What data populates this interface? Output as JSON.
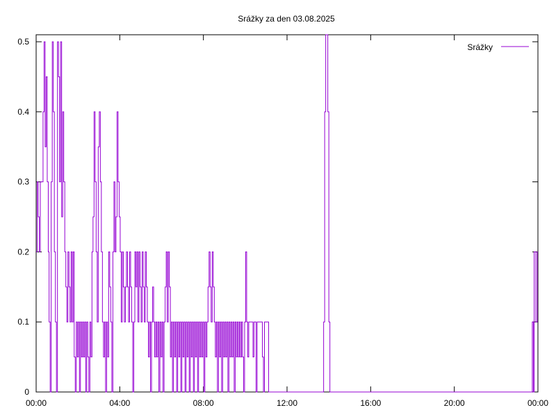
{
  "chart_data": {
    "type": "line",
    "title": "Srážky za den 03.08.2025",
    "xlabel": "",
    "ylabel": "",
    "x_unit": "hours",
    "xlim": [
      0,
      24
    ],
    "ylim": [
      0,
      0.51
    ],
    "x_tick_labels": [
      "00:00",
      "04:00",
      "08:00",
      "12:00",
      "16:00",
      "20:00",
      "00:00"
    ],
    "x_ticks": [
      0,
      4,
      8,
      12,
      16,
      20,
      24
    ],
    "y_ticks": [
      0,
      0.1,
      0.2,
      0.3,
      0.4,
      0.5
    ],
    "y_tick_labels": [
      "0",
      "0.1",
      "0.2",
      "0.3",
      "0.4",
      "0.5"
    ],
    "grid": false,
    "legend_position": "top-right",
    "series": [
      {
        "name": "Srážky",
        "color": "#9400d3",
        "step": true,
        "points": [
          [
            0.0,
            0.2
          ],
          [
            0.05,
            0.3
          ],
          [
            0.1,
            0.25
          ],
          [
            0.15,
            0.2
          ],
          [
            0.2,
            0.3
          ],
          [
            0.28,
            0.3
          ],
          [
            0.33,
            0.4
          ],
          [
            0.38,
            0.5
          ],
          [
            0.43,
            0.35
          ],
          [
            0.48,
            0.45
          ],
          [
            0.53,
            0.3
          ],
          [
            0.58,
            0.2
          ],
          [
            0.62,
            0.1
          ],
          [
            0.67,
            0.0
          ],
          [
            0.72,
            0.3
          ],
          [
            0.77,
            0.5
          ],
          [
            0.82,
            0.4
          ],
          [
            0.87,
            0.2
          ],
          [
            0.92,
            0.1
          ],
          [
            0.97,
            0.0
          ],
          [
            1.02,
            0.5
          ],
          [
            1.07,
            0.45
          ],
          [
            1.12,
            0.3
          ],
          [
            1.17,
            0.5
          ],
          [
            1.22,
            0.25
          ],
          [
            1.27,
            0.4
          ],
          [
            1.32,
            0.3
          ],
          [
            1.37,
            0.2
          ],
          [
            1.42,
            0.15
          ],
          [
            1.47,
            0.1
          ],
          [
            1.52,
            0.2
          ],
          [
            1.57,
            0.15
          ],
          [
            1.62,
            0.1
          ],
          [
            1.67,
            0.2
          ],
          [
            1.72,
            0.1
          ],
          [
            1.77,
            0.2
          ],
          [
            1.82,
            0.05
          ],
          [
            1.87,
            0.0
          ],
          [
            1.92,
            0.1
          ],
          [
            1.97,
            0.05
          ],
          [
            2.02,
            0.1
          ],
          [
            2.07,
            0.0
          ],
          [
            2.12,
            0.1
          ],
          [
            2.17,
            0.05
          ],
          [
            2.22,
            0.1
          ],
          [
            2.27,
            0.05
          ],
          [
            2.32,
            0.1
          ],
          [
            2.37,
            0.0
          ],
          [
            2.42,
            0.1
          ],
          [
            2.47,
            0.05
          ],
          [
            2.52,
            0.0
          ],
          [
            2.57,
            0.1
          ],
          [
            2.62,
            0.05
          ],
          [
            2.67,
            0.2
          ],
          [
            2.72,
            0.25
          ],
          [
            2.77,
            0.4
          ],
          [
            2.82,
            0.3
          ],
          [
            2.87,
            0.2
          ],
          [
            2.92,
            0.1
          ],
          [
            2.97,
            0.35
          ],
          [
            3.02,
            0.4
          ],
          [
            3.07,
            0.3
          ],
          [
            3.12,
            0.2
          ],
          [
            3.17,
            0.1
          ],
          [
            3.22,
            0.05
          ],
          [
            3.27,
            0.1
          ],
          [
            3.32,
            0.0
          ],
          [
            3.37,
            0.1
          ],
          [
            3.42,
            0.05
          ],
          [
            3.47,
            0.2
          ],
          [
            3.52,
            0.15
          ],
          [
            3.57,
            0.1
          ],
          [
            3.62,
            0.0
          ],
          [
            3.67,
            0.2
          ],
          [
            3.72,
            0.3
          ],
          [
            3.77,
            0.2
          ],
          [
            3.82,
            0.25
          ],
          [
            3.87,
            0.4
          ],
          [
            3.92,
            0.3
          ],
          [
            3.97,
            0.25
          ],
          [
            4.02,
            0.2
          ],
          [
            4.07,
            0.1
          ],
          [
            4.12,
            0.2
          ],
          [
            4.17,
            0.15
          ],
          [
            4.22,
            0.1
          ],
          [
            4.27,
            0.15
          ],
          [
            4.32,
            0.2
          ],
          [
            4.37,
            0.15
          ],
          [
            4.42,
            0.1
          ],
          [
            4.47,
            0.2
          ],
          [
            4.52,
            0.15
          ],
          [
            4.57,
            0.1
          ],
          [
            4.62,
            0.0
          ],
          [
            4.67,
            0.1
          ],
          [
            4.72,
            0.2
          ],
          [
            4.77,
            0.15
          ],
          [
            4.82,
            0.2
          ],
          [
            4.87,
            0.1
          ],
          [
            4.92,
            0.2
          ],
          [
            4.97,
            0.15
          ],
          [
            5.02,
            0.1
          ],
          [
            5.07,
            0.2
          ],
          [
            5.12,
            0.15
          ],
          [
            5.17,
            0.1
          ],
          [
            5.22,
            0.2
          ],
          [
            5.27,
            0.15
          ],
          [
            5.32,
            0.1
          ],
          [
            5.37,
            0.05
          ],
          [
            5.42,
            0.1
          ],
          [
            5.47,
            0.0
          ],
          [
            5.52,
            0.1
          ],
          [
            5.57,
            0.15
          ],
          [
            5.62,
            0.1
          ],
          [
            5.67,
            0.05
          ],
          [
            5.72,
            0.1
          ],
          [
            5.77,
            0.05
          ],
          [
            5.82,
            0.1
          ],
          [
            5.87,
            0.0
          ],
          [
            5.92,
            0.1
          ],
          [
            5.97,
            0.05
          ],
          [
            6.02,
            0.1
          ],
          [
            6.07,
            0.0
          ],
          [
            6.12,
            0.1
          ],
          [
            6.17,
            0.15
          ],
          [
            6.22,
            0.2
          ],
          [
            6.27,
            0.1
          ],
          [
            6.32,
            0.2
          ],
          [
            6.37,
            0.15
          ],
          [
            6.42,
            0.05
          ],
          [
            6.47,
            0.1
          ],
          [
            6.52,
            0.0
          ],
          [
            6.57,
            0.1
          ],
          [
            6.62,
            0.05
          ],
          [
            6.67,
            0.1
          ],
          [
            6.72,
            0.0
          ],
          [
            6.77,
            0.1
          ],
          [
            6.82,
            0.05
          ],
          [
            6.87,
            0.1
          ],
          [
            6.92,
            0.0
          ],
          [
            6.97,
            0.1
          ],
          [
            7.02,
            0.05
          ],
          [
            7.07,
            0.1
          ],
          [
            7.12,
            0.0
          ],
          [
            7.17,
            0.1
          ],
          [
            7.22,
            0.05
          ],
          [
            7.27,
            0.1
          ],
          [
            7.32,
            0.0
          ],
          [
            7.37,
            0.1
          ],
          [
            7.42,
            0.05
          ],
          [
            7.47,
            0.1
          ],
          [
            7.52,
            0.0
          ],
          [
            7.57,
            0.1
          ],
          [
            7.62,
            0.05
          ],
          [
            7.67,
            0.1
          ],
          [
            7.72,
            0.0
          ],
          [
            7.77,
            0.1
          ],
          [
            7.82,
            0.05
          ],
          [
            7.87,
            0.1
          ],
          [
            7.92,
            0.05
          ],
          [
            7.97,
            0.1
          ],
          [
            8.02,
            0.0
          ],
          [
            8.07,
            0.1
          ],
          [
            8.12,
            0.05
          ],
          [
            8.17,
            0.1
          ],
          [
            8.22,
            0.15
          ],
          [
            8.27,
            0.2
          ],
          [
            8.32,
            0.15
          ],
          [
            8.37,
            0.1
          ],
          [
            8.42,
            0.2
          ],
          [
            8.47,
            0.15
          ],
          [
            8.52,
            0.1
          ],
          [
            8.57,
            0.05
          ],
          [
            8.62,
            0.1
          ],
          [
            8.67,
            0.0
          ],
          [
            8.72,
            0.1
          ],
          [
            8.77,
            0.05
          ],
          [
            8.82,
            0.1
          ],
          [
            8.87,
            0.0
          ],
          [
            8.92,
            0.1
          ],
          [
            8.97,
            0.05
          ],
          [
            9.02,
            0.1
          ],
          [
            9.07,
            0.05
          ],
          [
            9.12,
            0.1
          ],
          [
            9.17,
            0.0
          ],
          [
            9.22,
            0.1
          ],
          [
            9.27,
            0.05
          ],
          [
            9.32,
            0.1
          ],
          [
            9.37,
            0.05
          ],
          [
            9.42,
            0.1
          ],
          [
            9.47,
            0.0
          ],
          [
            9.52,
            0.1
          ],
          [
            9.57,
            0.05
          ],
          [
            9.62,
            0.1
          ],
          [
            9.67,
            0.05
          ],
          [
            9.72,
            0.1
          ],
          [
            9.77,
            0.05
          ],
          [
            9.82,
            0.1
          ],
          [
            9.87,
            0.05
          ],
          [
            9.92,
            0.0
          ],
          [
            9.97,
            0.1
          ],
          [
            10.02,
            0.2
          ],
          [
            10.07,
            0.1
          ],
          [
            10.12,
            0.05
          ],
          [
            10.17,
            0.1
          ],
          [
            10.22,
            0.1
          ],
          [
            10.27,
            0.1
          ],
          [
            10.32,
            0.1
          ],
          [
            10.37,
            0.05
          ],
          [
            10.42,
            0.1
          ],
          [
            10.47,
            0.1
          ],
          [
            10.52,
            0.0
          ],
          [
            10.57,
            0.1
          ],
          [
            10.62,
            0.1
          ],
          [
            10.67,
            0.1
          ],
          [
            10.72,
            0.1
          ],
          [
            10.77,
            0.1
          ],
          [
            10.82,
            0.05
          ],
          [
            10.87,
            0.0
          ],
          [
            10.92,
            0.1
          ],
          [
            10.97,
            0.1
          ],
          [
            11.02,
            0.1
          ],
          [
            11.07,
            0.1
          ],
          [
            11.12,
            0.0
          ],
          [
            11.2,
            0.0
          ],
          [
            13.72,
            0.0
          ],
          [
            13.75,
            0.1
          ],
          [
            13.8,
            0.4
          ],
          [
            13.85,
            0.51
          ],
          [
            13.9,
            0.51
          ],
          [
            13.95,
            0.4
          ],
          [
            14.0,
            0.1
          ],
          [
            14.05,
            0.0
          ],
          [
            14.1,
            0.0
          ],
          [
            23.7,
            0.0
          ],
          [
            23.73,
            0.1
          ],
          [
            23.78,
            0.0
          ],
          [
            23.82,
            0.2
          ],
          [
            23.9,
            0.1
          ],
          [
            23.97,
            0.2
          ],
          [
            24.0,
            0.2
          ]
        ]
      }
    ]
  }
}
